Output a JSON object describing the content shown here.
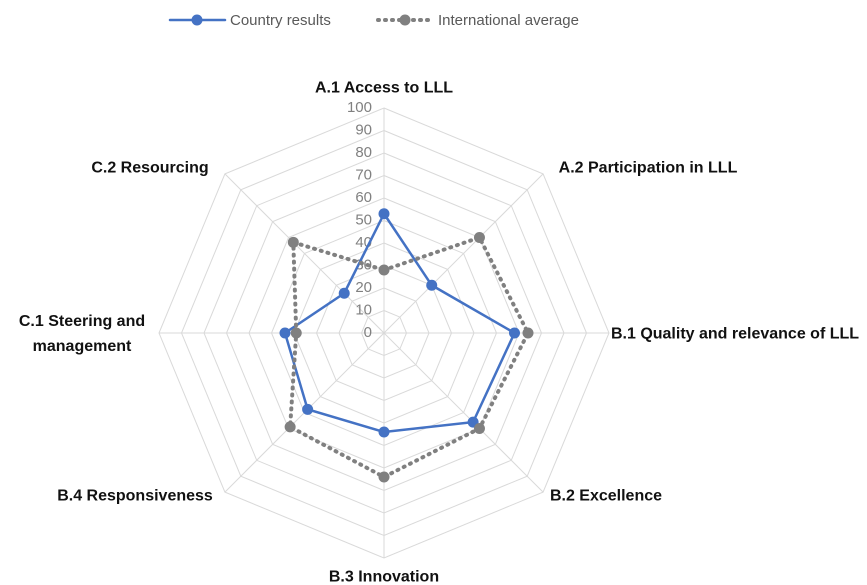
{
  "chart_data": {
    "type": "radar",
    "categories": [
      "A.1 Access to LLL",
      "A.2 Participation in LLL",
      "B.1 Quality and relevance of LLL",
      "B.2 Excellence",
      "B.3 Innovation",
      "B.4 Responsiveness",
      "C.1 Steering and management",
      "C.2 Resourcing"
    ],
    "series": [
      {
        "name": "Country results",
        "color": "#4472c4",
        "style": "solid",
        "values": [
          53,
          30,
          58,
          56,
          44,
          48,
          44,
          25
        ]
      },
      {
        "name": "International average",
        "color": "#808080",
        "style": "dotted",
        "values": [
          28,
          60,
          64,
          60,
          64,
          59,
          39,
          57
        ]
      }
    ],
    "ylim": [
      0,
      100
    ],
    "yticks": [
      0,
      10,
      20,
      30,
      40,
      50,
      60,
      70,
      80,
      90,
      100
    ],
    "grid": true,
    "legend": "top"
  }
}
